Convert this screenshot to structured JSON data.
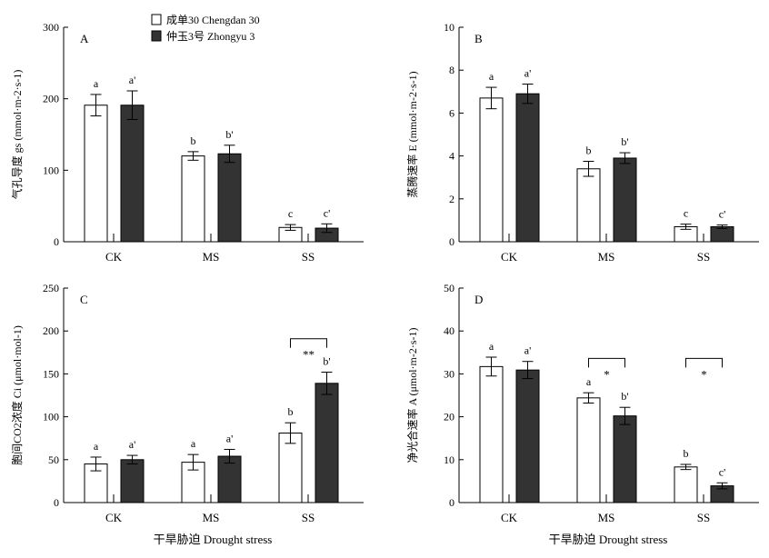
{
  "legend": {
    "items": [
      {
        "label": "成单30 Chengdan 30",
        "color": "#ffffff"
      },
      {
        "label": "仲玉3号 Zhongyu 3",
        "color": "#333333"
      }
    ]
  },
  "xlabel": "干旱胁迫 Drought stress",
  "chart_data": [
    {
      "type": "bar",
      "panel": "A",
      "ylabel": "气孔导度 gs (mmol·m-2·s-1)",
      "ylim": [
        0,
        300
      ],
      "yticks": [
        0,
        100,
        200,
        300
      ],
      "categories": [
        "CK",
        "MS",
        "SS"
      ],
      "series": [
        {
          "name": "成单30 Chengdan 30",
          "values": [
            191,
            120,
            20
          ],
          "errors": [
            15,
            6,
            4
          ],
          "letters": [
            "a",
            "b",
            "c"
          ]
        },
        {
          "name": "仲玉3号 Zhongyu 3",
          "values": [
            191,
            123,
            19
          ],
          "errors": [
            20,
            12,
            6
          ],
          "letters": [
            "a'",
            "b'",
            "c'"
          ]
        }
      ],
      "significance": []
    },
    {
      "type": "bar",
      "panel": "B",
      "ylabel": "蒸腾速率 E (mmol·m-2·s-1)",
      "ylim": [
        0,
        10
      ],
      "yticks": [
        0,
        2,
        4,
        6,
        8,
        10
      ],
      "categories": [
        "CK",
        "MS",
        "SS"
      ],
      "series": [
        {
          "name": "成单30 Chengdan 30",
          "values": [
            6.7,
            3.4,
            0.7
          ],
          "errors": [
            0.5,
            0.35,
            0.12
          ],
          "letters": [
            "a",
            "b",
            "c"
          ]
        },
        {
          "name": "仲玉3号 Zhongyu 3",
          "values": [
            6.9,
            3.9,
            0.7
          ],
          "errors": [
            0.45,
            0.25,
            0.08
          ],
          "letters": [
            "a'",
            "b'",
            "c'"
          ]
        }
      ],
      "significance": []
    },
    {
      "type": "bar",
      "panel": "C",
      "ylabel": "胞间CO2浓度 Ci (μmol·mol-1)",
      "ylim": [
        0,
        250
      ],
      "yticks": [
        0,
        50,
        100,
        150,
        200,
        250
      ],
      "categories": [
        "CK",
        "MS",
        "SS"
      ],
      "series": [
        {
          "name": "成单30 Chengdan 30",
          "values": [
            45,
            47,
            81
          ],
          "errors": [
            8,
            9,
            12
          ],
          "letters": [
            "a",
            "a",
            "b"
          ]
        },
        {
          "name": "仲玉3号 Zhongyu 3",
          "values": [
            50,
            54,
            139
          ],
          "errors": [
            5,
            8,
            13
          ],
          "letters": [
            "a'",
            "a'",
            "b'"
          ]
        }
      ],
      "significance": [
        {
          "category_index": 2,
          "label": "**",
          "y": 191
        }
      ]
    },
    {
      "type": "bar",
      "panel": "D",
      "ylabel": "净光合速率 A (μmol·m-2·s-1)",
      "ylim": [
        0,
        50
      ],
      "yticks": [
        0,
        10,
        20,
        30,
        40,
        50
      ],
      "categories": [
        "CK",
        "MS",
        "SS"
      ],
      "series": [
        {
          "name": "成单30 Chengdan 30",
          "values": [
            31.7,
            24.4,
            8.3
          ],
          "errors": [
            2.2,
            1.2,
            0.6
          ],
          "letters": [
            "a",
            "a",
            "b"
          ]
        },
        {
          "name": "仲玉3号 Zhongyu 3",
          "values": [
            30.9,
            20.2,
            3.9
          ],
          "errors": [
            2.0,
            2.0,
            0.7
          ],
          "letters": [
            "a'",
            "b'",
            "c'"
          ]
        }
      ],
      "significance": [
        {
          "category_index": 1,
          "label": "*",
          "y": 33.6
        },
        {
          "category_index": 2,
          "label": "*",
          "y": 33.6
        }
      ]
    }
  ]
}
